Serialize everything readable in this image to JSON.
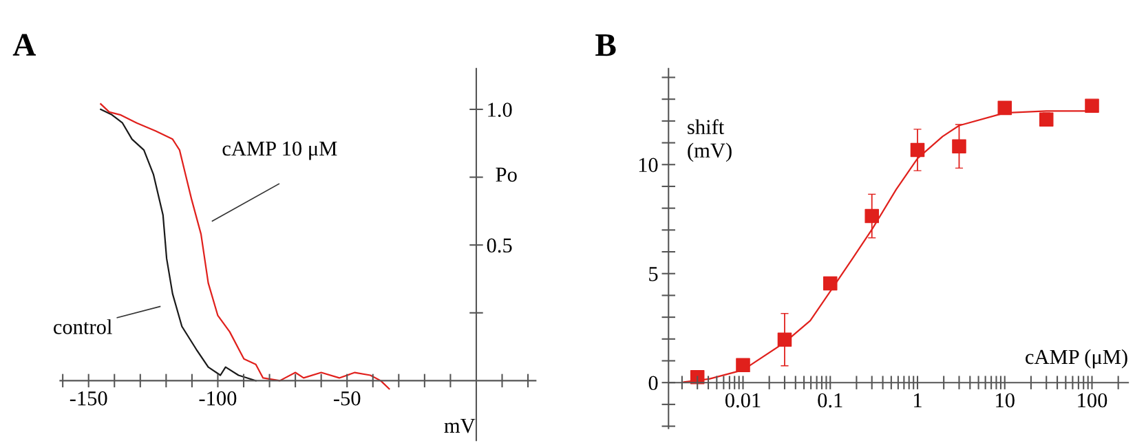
{
  "chart_data": [
    {
      "type": "line",
      "title": "A",
      "xlabel": "mV",
      "ylabel": "Po",
      "xlim": [
        -161,
        23
      ],
      "ylim": [
        -0.22,
        1.15
      ],
      "xticks": [
        {
          "value": -160,
          "label": null
        },
        -150,
        {
          "value": -140,
          "label": null
        },
        {
          "value": -130,
          "label": null
        },
        {
          "value": -120,
          "label": null
        },
        {
          "value": -110,
          "label": null
        },
        -100,
        {
          "value": -90,
          "label": null
        },
        {
          "value": -80,
          "label": null
        },
        {
          "value": -70,
          "label": null
        },
        {
          "value": -60,
          "label": null
        },
        -50,
        {
          "value": -40,
          "label": null
        },
        {
          "value": -30,
          "label": null
        },
        {
          "value": -20,
          "label": null
        },
        {
          "value": -10,
          "label": null
        },
        {
          "value": 10,
          "label": null
        },
        {
          "value": 20,
          "label": null
        }
      ],
      "yticks": [
        {
          "value": 0.25,
          "label": null
        },
        0.5,
        {
          "value": 0.75,
          "label": null
        },
        {
          "value": 1.0,
          "label": "1.0"
        }
      ],
      "grid": false,
      "legend": false,
      "marker": "none",
      "line_style": "solid",
      "series": [
        {
          "color": "#1a1a1a",
          "x": [
            -145.3,
            -141,
            -136.9,
            -133.2,
            -128.6,
            -124.9,
            -121.2,
            -119.8,
            -117.5,
            -113.9,
            -108.3,
            -103.7,
            -99,
            -97,
            -92,
            -85.3
          ],
          "values": [
            1.0,
            0.98,
            0.95,
            0.89,
            0.85,
            0.76,
            0.61,
            0.45,
            0.32,
            0.2,
            0.115,
            0.05,
            0.02,
            0.05,
            0.02,
            0.0
          ]
        },
        {
          "color": "#e0201c",
          "x": [
            -145.3,
            -142,
            -137.8,
            -131.4,
            -124,
            -117.5,
            -114.8,
            -110.2,
            -106.5,
            -103.7,
            -100,
            -95.4,
            -89.9,
            -85.3,
            -82.5,
            -76,
            -70,
            -66.8,
            -60,
            -53,
            -47,
            -41,
            -37,
            -33.7
          ],
          "values": [
            1.02,
            0.99,
            0.98,
            0.95,
            0.92,
            0.89,
            0.85,
            0.67,
            0.54,
            0.36,
            0.24,
            0.18,
            0.08,
            0.06,
            0.01,
            0.0,
            0.03,
            0.01,
            0.03,
            0.01,
            0.03,
            0.02,
            0.0,
            -0.03
          ]
        }
      ],
      "annotations": [
        "control",
        "cAMP 10 μM"
      ]
    },
    {
      "type": "scatter",
      "title": "B",
      "xlabel": "cAMP (μM)",
      "ylabel": "shift\n(mV)",
      "log": "x",
      "xlim": [
        0.0014,
        260
      ],
      "ylim": [
        -2.1,
        14.4
      ],
      "xticks": [
        {
          "value": 0.002,
          "label": null
        },
        {
          "value": 0.003,
          "label": null
        },
        {
          "value": 0.004,
          "label": null
        },
        {
          "value": 0.005,
          "label": null
        },
        {
          "value": 0.006,
          "label": null
        },
        {
          "value": 0.007,
          "label": null
        },
        {
          "value": 0.008,
          "label": null
        },
        {
          "value": 0.009,
          "label": null
        },
        0.01,
        {
          "value": 0.02,
          "label": null
        },
        {
          "value": 0.03,
          "label": null
        },
        {
          "value": 0.04,
          "label": null
        },
        {
          "value": 0.05,
          "label": null
        },
        {
          "value": 0.06,
          "label": null
        },
        {
          "value": 0.07,
          "label": null
        },
        {
          "value": 0.08,
          "label": null
        },
        {
          "value": 0.09,
          "label": null
        },
        0.1,
        {
          "value": 0.2,
          "label": null
        },
        {
          "value": 0.3,
          "label": null
        },
        {
          "value": 0.4,
          "label": null
        },
        {
          "value": 0.5,
          "label": null
        },
        {
          "value": 0.6,
          "label": null
        },
        {
          "value": 0.7,
          "label": null
        },
        {
          "value": 0.8,
          "label": null
        },
        {
          "value": 0.9,
          "label": null
        },
        1,
        {
          "value": 2,
          "label": null
        },
        {
          "value": 3,
          "label": null
        },
        {
          "value": 4,
          "label": null
        },
        {
          "value": 5,
          "label": null
        },
        {
          "value": 6,
          "label": null
        },
        {
          "value": 7,
          "label": null
        },
        {
          "value": 8,
          "label": null
        },
        {
          "value": 9,
          "label": null
        },
        10,
        {
          "value": 20,
          "label": null
        },
        {
          "value": 30,
          "label": null
        },
        {
          "value": 40,
          "label": null
        },
        {
          "value": 50,
          "label": null
        },
        {
          "value": 60,
          "label": null
        },
        {
          "value": 70,
          "label": null
        },
        {
          "value": 80,
          "label": null
        },
        {
          "value": 90,
          "label": null
        },
        100,
        {
          "value": 200,
          "label": null
        }
      ],
      "yticks": [
        {
          "value": -2,
          "label": null
        },
        {
          "value": -1,
          "label": null
        },
        0,
        {
          "value": 1,
          "label": null
        },
        {
          "value": 2,
          "label": null
        },
        {
          "value": 3,
          "label": null
        },
        {
          "value": 4,
          "label": null
        },
        5,
        {
          "value": 6,
          "label": null
        },
        {
          "value": 7,
          "label": null
        },
        {
          "value": 8,
          "label": null
        },
        {
          "value": 9,
          "label": null
        },
        10,
        {
          "value": 11,
          "label": null
        },
        {
          "value": 12,
          "label": null
        },
        {
          "value": 13,
          "label": null
        },
        {
          "value": 14,
          "label": null
        }
      ],
      "grid": false,
      "legend": false,
      "marker": "square",
      "series": [
        {
          "type": "line",
          "marker": "none",
          "color": "#e0201c",
          "x": [
            0.0021,
            0.0041,
            0.01,
            0.03,
            0.059,
            0.1,
            0.18,
            0.3,
            0.57,
            1,
            1.94,
            3,
            10,
            30,
            100
          ],
          "values": [
            0.03,
            0.17,
            0.58,
            1.84,
            2.84,
            4.18,
            5.69,
            7.02,
            8.86,
            10.28,
            11.29,
            11.79,
            12.37,
            12.46,
            12.46
          ]
        },
        {
          "color": "#e0201c",
          "x": [
            0.003,
            0.01,
            0.03,
            0.1,
            0.3,
            1,
            3,
            10,
            30,
            100
          ],
          "values": [
            0.25,
            0.8,
            1.97,
            4.55,
            7.64,
            10.67,
            10.84,
            12.6,
            12.07,
            12.7
          ],
          "errors": [
            null,
            null,
            1.2,
            null,
            1.0,
            0.95,
            1.0,
            null,
            0.3,
            null
          ]
        }
      ]
    }
  ]
}
